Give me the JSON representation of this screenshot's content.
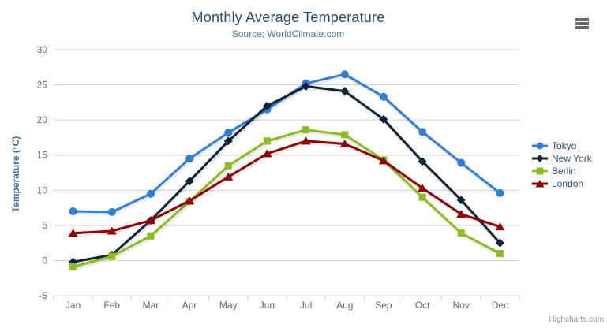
{
  "ui": {
    "export_menu_icon": "hamburger",
    "credits_label": "Highcharts.com"
  },
  "chart_data": {
    "type": "line",
    "title": "Monthly Average Temperature",
    "subtitle": "Source: WorldClimate.com",
    "xlabel": "",
    "ylabel": "Temperature (°C)",
    "categories": [
      "Jan",
      "Feb",
      "Mar",
      "Apr",
      "May",
      "Jun",
      "Jul",
      "Aug",
      "Sep",
      "Oct",
      "Nov",
      "Dec"
    ],
    "series": [
      {
        "name": "Tokyo",
        "color": "#2f7ed8",
        "marker": "circle",
        "values": [
          7.0,
          6.9,
          9.5,
          14.5,
          18.2,
          21.5,
          25.2,
          26.5,
          23.3,
          18.3,
          13.9,
          9.6
        ]
      },
      {
        "name": "New York",
        "color": "#0d233a",
        "marker": "diamond",
        "values": [
          -0.2,
          0.8,
          5.7,
          11.3,
          17.0,
          22.0,
          24.8,
          24.1,
          20.1,
          14.1,
          8.6,
          2.5
        ]
      },
      {
        "name": "Berlin",
        "color": "#8bbc21",
        "marker": "square",
        "values": [
          -0.9,
          0.6,
          3.5,
          8.4,
          13.5,
          17.0,
          18.6,
          17.9,
          14.3,
          9.0,
          3.9,
          1.0
        ]
      },
      {
        "name": "London",
        "color": "#910000",
        "marker": "triangle",
        "values": [
          3.9,
          4.2,
          5.7,
          8.5,
          11.9,
          15.2,
          17.0,
          16.6,
          14.2,
          10.3,
          6.6,
          4.8
        ]
      }
    ],
    "ylim": [
      -5,
      30
    ],
    "ytick_step": 5,
    "grid": true,
    "legend_position": "right",
    "colors": {
      "title": "#274b6d",
      "subtitle": "#4d759e",
      "axis_labels": "#666666",
      "yaxis_title": "#4572a7",
      "gridline": "#cccccc",
      "axis_line": "#c0d0e0",
      "credits": "#909090",
      "menu_icon": "#666666"
    }
  }
}
